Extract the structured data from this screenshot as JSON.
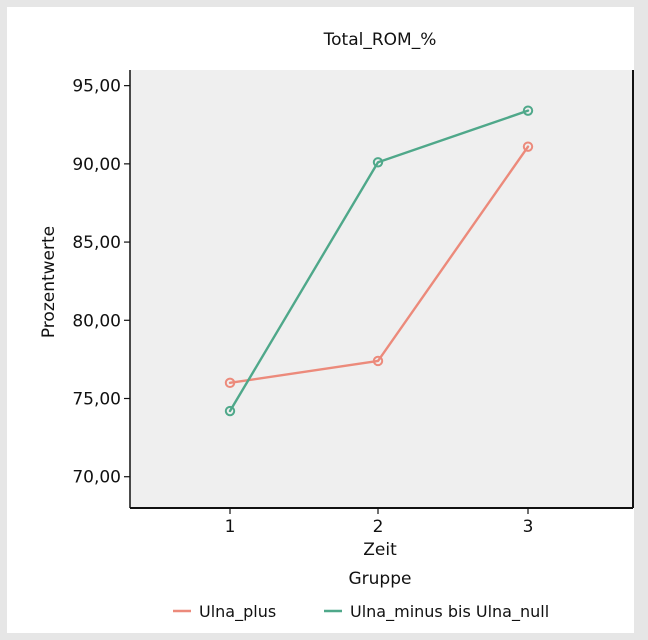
{
  "chart_data": {
    "type": "line",
    "title": "Total_ROM_%",
    "xlabel": "Zeit",
    "ylabel": "Prozentwerte",
    "categories": [
      "1",
      "2",
      "3"
    ],
    "ylim": [
      68.0,
      96.0
    ],
    "yticks": [
      70,
      75,
      80,
      85,
      90,
      95
    ],
    "ytick_labels": [
      "70,00",
      "75,00",
      "80,00",
      "85,00",
      "90,00",
      "95,00"
    ],
    "legend_title": "Gruppe",
    "legend_position": "bottom",
    "grid": false,
    "series": [
      {
        "name": "Ulna_plus",
        "color": "#ec8a7b",
        "values": [
          76.0,
          77.4,
          91.1
        ]
      },
      {
        "name": "Ulna_minus bis Ulna_null",
        "color": "#4fa88a",
        "values": [
          74.2,
          90.1,
          93.4
        ]
      }
    ]
  },
  "colors": {
    "plot_background": "#efefef",
    "axis": "#111111"
  }
}
